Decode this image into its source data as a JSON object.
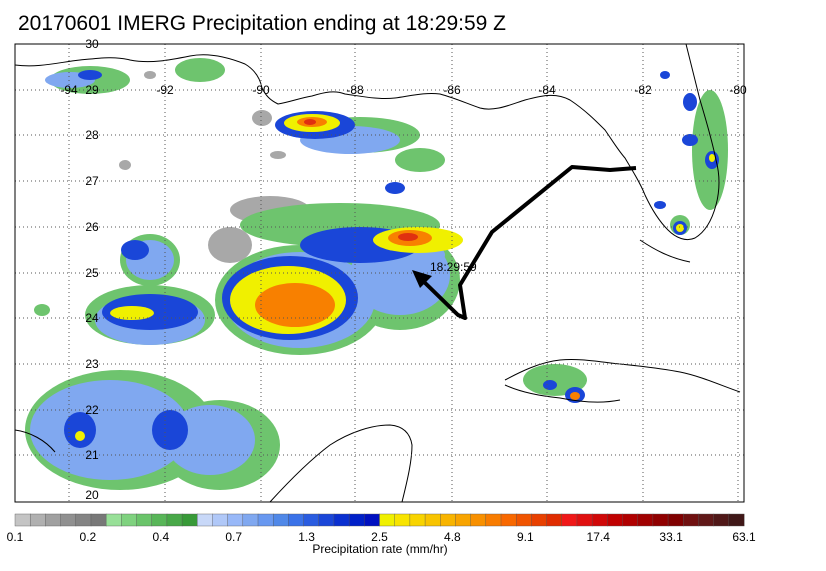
{
  "title": "20170601 IMERG Precipitation ending at 18:29:59 Z",
  "map": {
    "lon_labels": [
      "-94",
      "-92",
      "-90",
      "-88",
      "-86",
      "-84",
      "-82",
      "-80"
    ],
    "lat_labels": [
      "30",
      "29",
      "28",
      "27",
      "26",
      "25",
      "24",
      "23",
      "22",
      "21",
      "20"
    ],
    "track_time_label": "18:29:59",
    "colors": {
      "land_border": "#000000",
      "grid": "#555555",
      "track": "#000000"
    }
  },
  "colorbar": {
    "tick_labels": [
      "0.1",
      "0.2",
      "0.4",
      "0.7",
      "1.3",
      "2.5",
      "4.8",
      "9.1",
      "17.4",
      "33.1",
      "63.1"
    ],
    "label": "Precipitation rate (mm/hr)",
    "segment_colors": [
      "#c4c4c4",
      "#b0b0b0",
      "#a0a0a0",
      "#909090",
      "#848484",
      "#787878",
      "#98e098",
      "#7fd27f",
      "#6ac46a",
      "#58b658",
      "#48a848",
      "#389a38",
      "#c8d8f8",
      "#b0c8f8",
      "#98b8f8",
      "#80a8f0",
      "#6898f0",
      "#5088e8",
      "#3a72e8",
      "#2a5ce0",
      "#1a46d8",
      "#0a30d0",
      "#0020c8",
      "#0010c0",
      "#f0f000",
      "#f8e400",
      "#f8d400",
      "#f8c400",
      "#f8b400",
      "#f8a400",
      "#f89000",
      "#f87c00",
      "#f86800",
      "#f05400",
      "#e84000",
      "#e02c00",
      "#f01818",
      "#e01010",
      "#d00808",
      "#c00000",
      "#b00000",
      "#a00000",
      "#900000",
      "#800000",
      "#701010",
      "#601818",
      "#501818",
      "#401818"
    ]
  }
}
